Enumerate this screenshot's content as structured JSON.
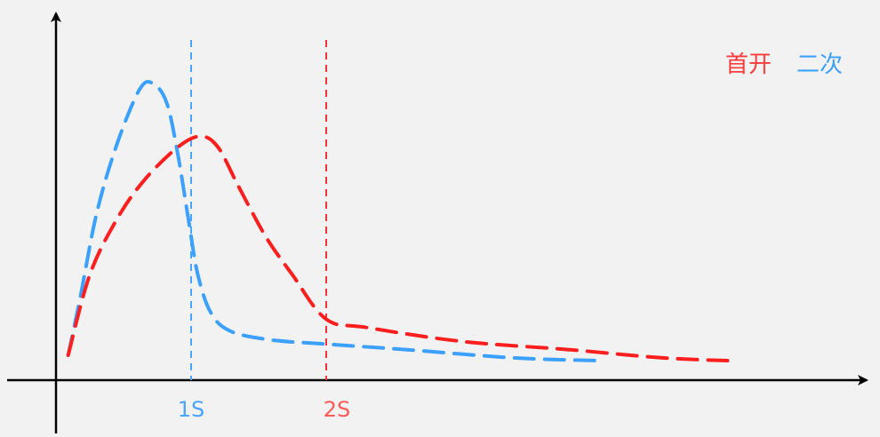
{
  "chart_data": {
    "type": "line",
    "title": "",
    "xlabel": "",
    "ylabel": "",
    "grid": false,
    "legend_position": "top-right",
    "xlim": [
      0,
      5.25
    ],
    "ylim": [
      0,
      1
    ],
    "x_ticks": [
      {
        "label": "1S",
        "x": 1,
        "color": "#4aa3ff"
      },
      {
        "label": "2S",
        "x": 2,
        "color": "#ff5a5a"
      }
    ],
    "series": [
      {
        "name": "首开",
        "color": "#ff1e1e",
        "dash": "dashed",
        "points": [
          [
            0.09,
            0.09
          ],
          [
            0.25,
            0.38
          ],
          [
            0.45,
            0.58
          ],
          [
            0.65,
            0.72
          ],
          [
            0.9,
            0.84
          ],
          [
            1.07,
            0.88
          ],
          [
            1.2,
            0.84
          ],
          [
            1.35,
            0.7
          ],
          [
            1.55,
            0.52
          ],
          [
            1.75,
            0.38
          ],
          [
            2.0,
            0.22
          ],
          [
            2.3,
            0.19
          ],
          [
            3.0,
            0.14
          ],
          [
            3.8,
            0.11
          ],
          [
            4.5,
            0.08
          ],
          [
            5.0,
            0.07
          ]
        ]
      },
      {
        "name": "二次",
        "color": "#3ba0ff",
        "dash": "dashed",
        "points": [
          [
            0.09,
            0.09
          ],
          [
            0.18,
            0.3
          ],
          [
            0.3,
            0.6
          ],
          [
            0.45,
            0.85
          ],
          [
            0.62,
            1.05
          ],
          [
            0.72,
            1.07
          ],
          [
            0.82,
            1.0
          ],
          [
            0.9,
            0.82
          ],
          [
            0.98,
            0.58
          ],
          [
            1.05,
            0.38
          ],
          [
            1.15,
            0.24
          ],
          [
            1.3,
            0.175
          ],
          [
            1.6,
            0.145
          ],
          [
            2.0,
            0.13
          ],
          [
            2.6,
            0.11
          ],
          [
            3.4,
            0.08
          ],
          [
            4.05,
            0.07
          ]
        ]
      }
    ],
    "reference_lines": [
      {
        "x": 1,
        "color": "#4aa3ff"
      },
      {
        "x": 2,
        "color": "#ff3030"
      }
    ]
  }
}
